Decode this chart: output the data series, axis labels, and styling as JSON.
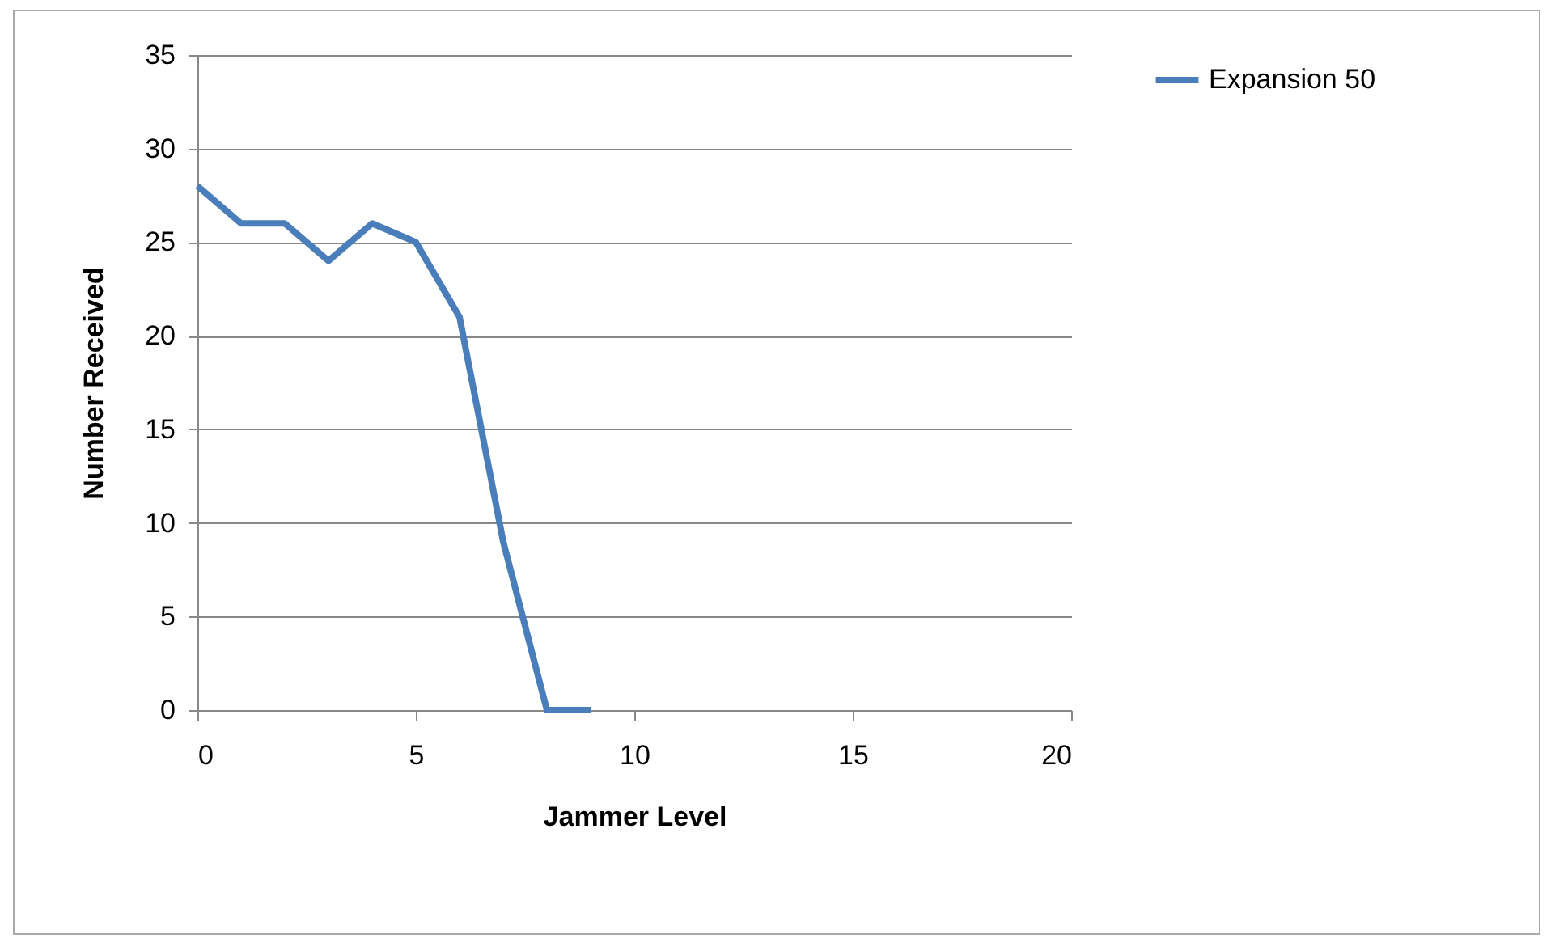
{
  "chart_data": {
    "type": "line",
    "xlabel": "Jammer Level",
    "ylabel": "Number Received",
    "x": [
      0,
      1,
      2,
      3,
      4,
      5,
      6,
      7,
      8,
      9
    ],
    "series": [
      {
        "name": "Expansion 50",
        "color": "#4a7ebb",
        "values": [
          28,
          26,
          26,
          24,
          26,
          25,
          21,
          9,
          0,
          0
        ]
      }
    ],
    "xlim": [
      0,
      20
    ],
    "xticks": [
      0,
      5,
      10,
      15,
      20
    ],
    "ylim": [
      0,
      35
    ],
    "yticks": [
      0,
      5,
      10,
      15,
      20,
      25,
      30,
      35
    ],
    "grid": "y",
    "legend": "right",
    "marker": "none",
    "line_style": "solid"
  }
}
